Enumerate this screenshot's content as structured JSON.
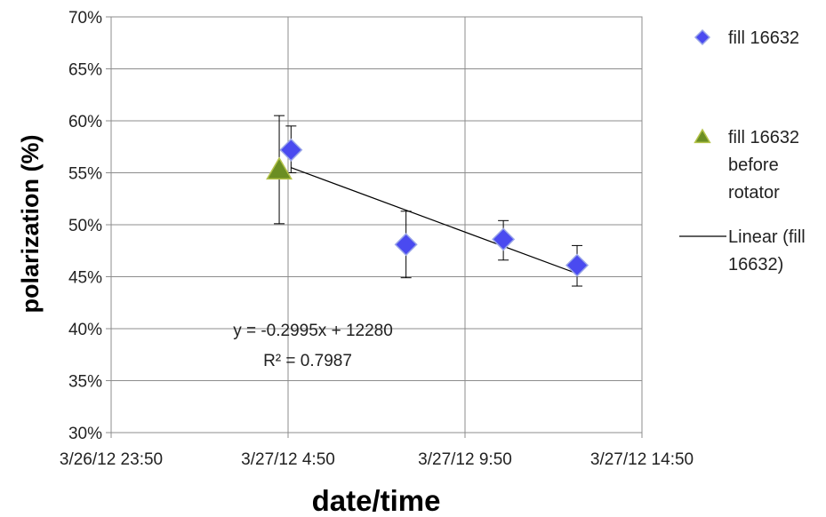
{
  "chart_data": {
    "type": "scatter",
    "xlabel": "date/time",
    "ylabel": "polarization (%)",
    "x_ticks": [
      "3/26/12 23:50",
      "3/27/12 4:50",
      "3/27/12 9:50",
      "3/27/12 14:50"
    ],
    "xlim": [
      "3/26/12 23:50",
      "3/27/12 14:50"
    ],
    "ylim": [
      0.3,
      0.7
    ],
    "y_tick_values": [
      0.3,
      0.35,
      0.4,
      0.45,
      0.5,
      0.55,
      0.6,
      0.65,
      0.7
    ],
    "y_ticks": [
      "30%",
      "35%",
      "40%",
      "45%",
      "50%",
      "55%",
      "60%",
      "65%",
      "70%"
    ],
    "grid": true,
    "legend_position": "right",
    "series": [
      {
        "name": "fill 16632",
        "marker": "diamond",
        "color": "#4a4af0",
        "points": [
          {
            "x": "3/27/12 4:55",
            "y": 0.572,
            "err_low": 0.55,
            "err_high": 0.595
          },
          {
            "x": "3/27/12 8:10",
            "y": 0.481,
            "err_low": 0.449,
            "err_high": 0.513
          },
          {
            "x": "3/27/12 10:55",
            "y": 0.486,
            "err_low": 0.466,
            "err_high": 0.504
          },
          {
            "x": "3/27/12 13:00",
            "y": 0.461,
            "err_low": 0.441,
            "err_high": 0.48
          }
        ]
      },
      {
        "name": "fill 16632 before rotator",
        "legend_lines": [
          "fill 16632",
          "before",
          "rotator"
        ],
        "marker": "triangle",
        "color": "#6b8e23",
        "points": [
          {
            "x": "3/27/12 4:35",
            "y": 0.553,
            "err_low": 0.501,
            "err_high": 0.605
          }
        ]
      }
    ],
    "trendline": {
      "name": "Linear (fill 16632)",
      "legend_lines": [
        "Linear (fill",
        "16632)"
      ],
      "color": "#000000",
      "from": {
        "x": "3/27/12 4:55",
        "y": 0.555
      },
      "to": {
        "x": "3/27/12 13:00",
        "y": 0.453
      },
      "equation": "y = -0.2995x + 12280",
      "r_squared": "R² = 0.7987"
    }
  }
}
